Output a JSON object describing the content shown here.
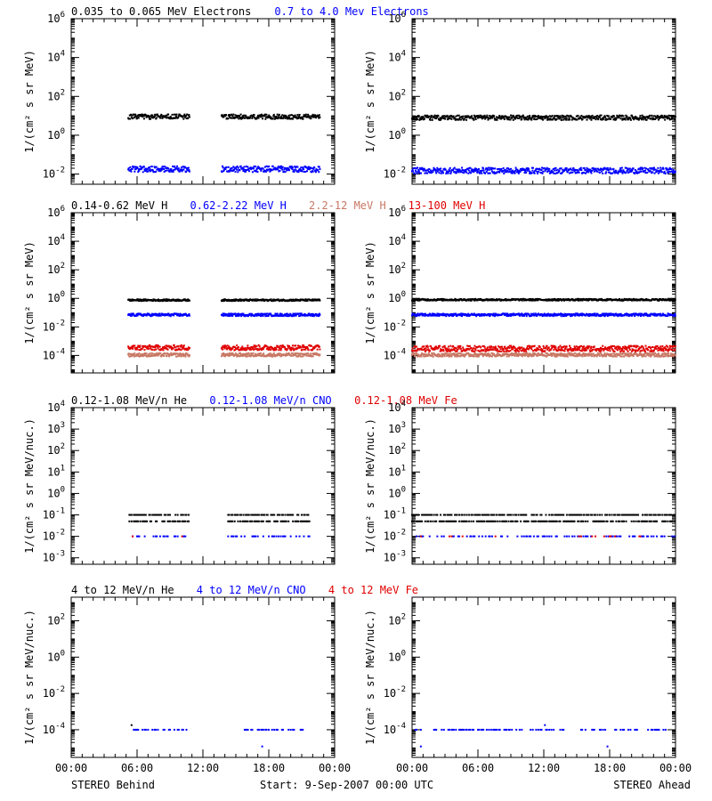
{
  "figure": {
    "footer_left": "STEREO Behind",
    "footer_center": "Start:  9-Sep-2007 00:00 UTC",
    "footer_right": "STEREO Ahead"
  },
  "chart_data": [
    {
      "type": "scatter",
      "panel": "electrons-behind",
      "title": "",
      "ylabel": "1/(cm² s sr MeV)",
      "yscale": "log",
      "ylim": [
        0.003,
        1000000
      ],
      "y_ticks": [
        0.01,
        1,
        100,
        10000,
        1000000
      ],
      "y_tick_labels": [
        {
          "base": "10",
          "exp": "-2"
        },
        {
          "base": "10",
          "exp": "0"
        },
        {
          "base": "10",
          "exp": "2"
        },
        {
          "base": "10",
          "exp": "4"
        },
        {
          "base": "10",
          "exp": "6"
        }
      ],
      "xlim": [
        "00:00",
        "24:00"
      ],
      "x_ticks": [
        "00:00",
        "06:00",
        "12:00",
        "18:00",
        "00:00"
      ],
      "x_tick_labels_visible": false,
      "legend": [
        {
          "name": "0.035 to 0.065 MeV Electrons",
          "color": "#000000"
        },
        {
          "name": "0.7 to 4.0 Mev Electrons",
          "color": "#0000ff"
        }
      ],
      "series": [
        {
          "name": "0.035 to 0.065 MeV Electrons",
          "color": "#000000",
          "segments": [
            [
              5.2,
              10.8
            ],
            [
              13.7,
              22.7
            ]
          ],
          "y": 9,
          "spread": 0.12
        },
        {
          "name": "0.7 to 4.0 Mev Electrons",
          "color": "#0000ff",
          "segments": [
            [
              5.2,
              10.8
            ],
            [
              13.7,
              22.7
            ]
          ],
          "y": 0.018,
          "spread": 0.15
        }
      ]
    },
    {
      "type": "scatter",
      "panel": "electrons-ahead",
      "ylabel": "1/(cm² s sr MeV)",
      "yscale": "log",
      "ylim": [
        0.003,
        1000000
      ],
      "y_ticks": [
        0.01,
        1,
        100,
        10000,
        1000000
      ],
      "y_tick_labels": [
        {
          "base": "10",
          "exp": "-2"
        },
        {
          "base": "10",
          "exp": "0"
        },
        {
          "base": "10",
          "exp": "2"
        },
        {
          "base": "10",
          "exp": "4"
        },
        {
          "base": "10",
          "exp": "6"
        }
      ],
      "xlim": [
        "00:00",
        "24:00"
      ],
      "x_ticks": [
        "00:00",
        "06:00",
        "12:00",
        "18:00",
        "00:00"
      ],
      "x_tick_labels_visible": false,
      "series": [
        {
          "name": "0.035 to 0.065 MeV Electrons",
          "color": "#000000",
          "segments": [
            [
              0,
              24
            ]
          ],
          "y": 8,
          "spread": 0.12
        },
        {
          "name": "0.7 to 4.0 Mev Electrons",
          "color": "#0000ff",
          "segments": [
            [
              0,
              24
            ]
          ],
          "y": 0.015,
          "spread": 0.15
        }
      ]
    },
    {
      "type": "scatter",
      "panel": "protons-behind",
      "ylabel": "1/(cm² s sr MeV)",
      "yscale": "log",
      "ylim": [
        6e-06,
        1000000
      ],
      "y_ticks": [
        0.0001,
        0.01,
        1,
        100,
        10000,
        1000000
      ],
      "y_tick_labels": [
        {
          "base": "10",
          "exp": "-4"
        },
        {
          "base": "10",
          "exp": "-2"
        },
        {
          "base": "10",
          "exp": "0"
        },
        {
          "base": "10",
          "exp": "2"
        },
        {
          "base": "10",
          "exp": "4"
        },
        {
          "base": "10",
          "exp": "6"
        }
      ],
      "xlim": [
        "00:00",
        "24:00"
      ],
      "x_ticks": [
        "00:00",
        "06:00",
        "12:00",
        "18:00",
        "00:00"
      ],
      "x_tick_labels_visible": false,
      "legend": [
        {
          "name": "0.14-0.62 MeV H",
          "color": "#000000"
        },
        {
          "name": "0.62-2.22 MeV H",
          "color": "#0000ff"
        },
        {
          "name": "2.2-12 MeV H",
          "color": "#c87864"
        },
        {
          "name": "13-100 MeV H",
          "color": "#e00000"
        }
      ],
      "series": [
        {
          "name": "0.14-0.62 MeV H",
          "color": "#000000",
          "segments": [
            [
              5.2,
              10.8
            ],
            [
              13.7,
              22.7
            ]
          ],
          "y": 0.75,
          "spread": 0.06
        },
        {
          "name": "0.62-2.22 MeV H",
          "color": "#0000ff",
          "segments": [
            [
              5.2,
              10.8
            ],
            [
              13.7,
              22.7
            ]
          ],
          "y": 0.07,
          "spread": 0.09
        },
        {
          "name": "2.2-12 MeV H",
          "color": "#c87864",
          "segments": [
            [
              5.2,
              10.8
            ],
            [
              13.7,
              22.7
            ]
          ],
          "y": 0.00011,
          "spread": 0.12
        },
        {
          "name": "13-100 MeV H",
          "color": "#e00000",
          "segments": [
            [
              5.2,
              10.8
            ],
            [
              13.7,
              22.7
            ]
          ],
          "y": 0.00035,
          "spread": 0.18
        }
      ]
    },
    {
      "type": "scatter",
      "panel": "protons-ahead",
      "ylabel": "1/(cm² s sr MeV)",
      "yscale": "log",
      "ylim": [
        6e-06,
        1000000
      ],
      "y_ticks": [
        0.0001,
        0.01,
        1,
        100,
        10000,
        1000000
      ],
      "y_tick_labels": [
        {
          "base": "10",
          "exp": "-4"
        },
        {
          "base": "10",
          "exp": "-2"
        },
        {
          "base": "10",
          "exp": "0"
        },
        {
          "base": "10",
          "exp": "2"
        },
        {
          "base": "10",
          "exp": "4"
        },
        {
          "base": "10",
          "exp": "6"
        }
      ],
      "xlim": [
        "00:00",
        "24:00"
      ],
      "x_ticks": [
        "00:00",
        "06:00",
        "12:00",
        "18:00",
        "00:00"
      ],
      "x_tick_labels_visible": false,
      "series": [
        {
          "name": "0.14-0.62 MeV H",
          "color": "#000000",
          "segments": [
            [
              0,
              24
            ]
          ],
          "y": 0.8,
          "spread": 0.06
        },
        {
          "name": "0.62-2.22 MeV H",
          "color": "#0000ff",
          "segments": [
            [
              0,
              24
            ]
          ],
          "y": 0.07,
          "spread": 0.09
        },
        {
          "name": "2.2-12 MeV H",
          "color": "#c87864",
          "segments": [
            [
              0,
              24
            ]
          ],
          "y": 0.00011,
          "spread": 0.12
        },
        {
          "name": "13-100 MeV H",
          "color": "#e00000",
          "segments": [
            [
              0,
              24
            ]
          ],
          "y": 0.0003,
          "spread": 0.2
        }
      ]
    },
    {
      "type": "scatter",
      "panel": "heavy-ions-low-behind",
      "ylabel": "1/(cm² s sr MeV/nuc.)",
      "yscale": "log",
      "ylim": [
        0.0005,
        10000
      ],
      "y_ticks": [
        0.001,
        0.01,
        0.1,
        1,
        10,
        100,
        1000,
        10000
      ],
      "y_tick_labels": [
        {
          "base": "10",
          "exp": "-3"
        },
        {
          "base": "10",
          "exp": "-2"
        },
        {
          "base": "10",
          "exp": "-1"
        },
        {
          "base": "10",
          "exp": "0"
        },
        {
          "base": "10",
          "exp": "1"
        },
        {
          "base": "10",
          "exp": "2"
        },
        {
          "base": "10",
          "exp": "3"
        },
        {
          "base": "10",
          "exp": "4"
        }
      ],
      "xlim": [
        "00:00",
        "24:00"
      ],
      "x_ticks": [
        "00:00",
        "06:00",
        "12:00",
        "18:00",
        "00:00"
      ],
      "x_tick_labels_visible": false,
      "legend": [
        {
          "name": "0.12-1.08 MeV/n He",
          "color": "#000000"
        },
        {
          "name": "0.12-1.08 MeV/n CNO",
          "color": "#0000ff"
        },
        {
          "name": "0.12-1.08 MeV Fe",
          "color": "#e00000"
        }
      ],
      "series": [
        {
          "name": "0.12-1.08 MeV/n He",
          "color": "#000000",
          "segments": [
            [
              5.3,
              10.7
            ],
            [
              14.3,
              21.8
            ]
          ],
          "levels": [
            0.05,
            0.1
          ],
          "density": 0.7
        },
        {
          "name": "0.12-1.08 MeV/n CNO",
          "color": "#0000ff",
          "segments": [
            [
              5.3,
              10.7
            ],
            [
              14.3,
              21.8
            ]
          ],
          "levels": [
            0.01
          ],
          "density": 0.35
        },
        {
          "name": "0.12-1.08 MeV Fe",
          "color": "#e00000",
          "segments": [
            [
              5.3,
              10.7
            ]
          ],
          "levels": [
            0.01
          ],
          "density": 0.1
        }
      ]
    },
    {
      "type": "scatter",
      "panel": "heavy-ions-low-ahead",
      "ylabel": "1/(cm² s sr MeV/nuc.)",
      "yscale": "log",
      "ylim": [
        0.0005,
        10000
      ],
      "y_ticks": [
        0.001,
        0.01,
        0.1,
        1,
        10,
        100,
        1000,
        10000
      ],
      "y_tick_labels": [
        {
          "base": "10",
          "exp": "-3"
        },
        {
          "base": "10",
          "exp": "-2"
        },
        {
          "base": "10",
          "exp": "-1"
        },
        {
          "base": "10",
          "exp": "0"
        },
        {
          "base": "10",
          "exp": "1"
        },
        {
          "base": "10",
          "exp": "2"
        },
        {
          "base": "10",
          "exp": "3"
        },
        {
          "base": "10",
          "exp": "4"
        }
      ],
      "xlim": [
        "00:00",
        "24:00"
      ],
      "x_ticks": [
        "00:00",
        "06:00",
        "12:00",
        "18:00",
        "00:00"
      ],
      "x_tick_labels_visible": false,
      "series": [
        {
          "name": "0.12-1.08 MeV/n He",
          "color": "#000000",
          "segments": [
            [
              0,
              24
            ]
          ],
          "levels": [
            0.05,
            0.1
          ],
          "density": 0.7
        },
        {
          "name": "0.12-1.08 MeV/n CNO",
          "color": "#0000ff",
          "segments": [
            [
              0,
              24
            ]
          ],
          "levels": [
            0.01
          ],
          "density": 0.35
        },
        {
          "name": "0.12-1.08 MeV Fe",
          "color": "#e00000",
          "segments": [
            [
              0,
              24
            ]
          ],
          "levels": [
            0.01
          ],
          "density": 0.05
        }
      ]
    },
    {
      "type": "scatter",
      "panel": "heavy-ions-high-behind",
      "ylabel": "1/(cm² s sr MeV/nuc.)",
      "yscale": "log",
      "ylim": [
        3e-06,
        2000
      ],
      "y_ticks": [
        0.0001,
        0.01,
        1,
        100
      ],
      "y_tick_labels": [
        {
          "base": "10",
          "exp": "-4"
        },
        {
          "base": "10",
          "exp": "-2"
        },
        {
          "base": "10",
          "exp": "0"
        },
        {
          "base": "10",
          "exp": "2"
        }
      ],
      "xlim": [
        "00:00",
        "24:00"
      ],
      "x_ticks": [
        "00:00",
        "06:00",
        "12:00",
        "18:00",
        "00:00"
      ],
      "x_tick_labels": [
        "00:00",
        "06:00",
        "12:00",
        "18:00",
        "00:00"
      ],
      "legend": [
        {
          "name": "4 to 12 MeV/n He",
          "color": "#000000"
        },
        {
          "name": "4 to 12 MeV/n CNO",
          "color": "#0000ff"
        },
        {
          "name": "4 to 12 MeV Fe",
          "color": "#e00000"
        }
      ],
      "series": [
        {
          "name": "4 to 12 MeV/n He",
          "color": "#000000",
          "points": [
            [
              5.5,
              0.00018
            ]
          ]
        },
        {
          "name": "4 to 12 MeV/n CNO",
          "color": "#0000ff",
          "segments": [
            [
              5.6,
              10.6
            ],
            [
              15.7,
              21.6
            ]
          ],
          "levels": [
            0.0001
          ],
          "density": 0.45,
          "points": [
            [
              17.4,
              1.2e-05
            ]
          ]
        }
      ]
    },
    {
      "type": "scatter",
      "panel": "heavy-ions-high-ahead",
      "ylabel": "1/(cm² s sr MeV/nuc.)",
      "yscale": "log",
      "ylim": [
        3e-06,
        2000
      ],
      "y_ticks": [
        0.0001,
        0.01,
        1,
        100
      ],
      "y_tick_labels": [
        {
          "base": "10",
          "exp": "-4"
        },
        {
          "base": "10",
          "exp": "-2"
        },
        {
          "base": "10",
          "exp": "0"
        },
        {
          "base": "10",
          "exp": "2"
        }
      ],
      "xlim": [
        "00:00",
        "24:00"
      ],
      "x_ticks": [
        "00:00",
        "06:00",
        "12:00",
        "18:00",
        "00:00"
      ],
      "x_tick_labels": [
        "00:00",
        "06:00",
        "12:00",
        "18:00",
        "00:00"
      ],
      "series": [
        {
          "name": "4 to 12 MeV/n CNO",
          "color": "#0000ff",
          "segments": [
            [
              0.2,
              13.8
            ],
            [
              15.3,
              23.6
            ]
          ],
          "levels": [
            0.0001
          ],
          "density": 0.45,
          "points": [
            [
              0.8,
              1.2e-05
            ],
            [
              17.8,
              1.2e-05
            ],
            [
              12.1,
              0.00018
            ]
          ]
        }
      ]
    }
  ]
}
